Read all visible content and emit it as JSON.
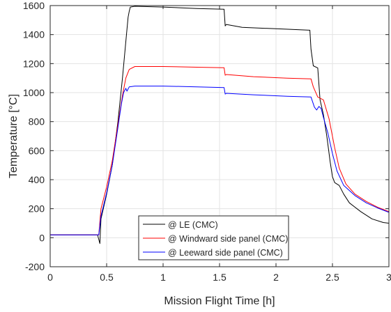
{
  "chart_data": {
    "type": "line",
    "xlabel": "Mission Flight Time [h]",
    "ylabel": "Temperature [°C]",
    "xlim": [
      0,
      3
    ],
    "ylim": [
      -200,
      1600
    ],
    "xticks": [
      0,
      0.5,
      1,
      1.5,
      2,
      2.5,
      3
    ],
    "xtick_labels": [
      "0",
      "0.5",
      "1",
      "1.5",
      "2",
      "2.5",
      "3"
    ],
    "yticks": [
      -200,
      0,
      200,
      400,
      600,
      800,
      1000,
      1200,
      1400,
      1600
    ],
    "ytick_labels": [
      "-200",
      "0",
      "200",
      "400",
      "600",
      "800",
      "1000",
      "1200",
      "1400",
      "1600"
    ],
    "grid": true,
    "legend_position": "bottom-center",
    "series": [
      {
        "name": "@ LE (CMC)",
        "color": "#000000",
        "points": [
          [
            0,
            20
          ],
          [
            0.42,
            20
          ],
          [
            0.44,
            -40
          ],
          [
            0.45,
            130
          ],
          [
            0.5,
            300
          ],
          [
            0.55,
            500
          ],
          [
            0.6,
            800
          ],
          [
            0.64,
            1100
          ],
          [
            0.67,
            1350
          ],
          [
            0.69,
            1520
          ],
          [
            0.7,
            1560
          ],
          [
            0.71,
            1590
          ],
          [
            0.75,
            1595
          ],
          [
            1.0,
            1590
          ],
          [
            1.3,
            1580
          ],
          [
            1.54,
            1575
          ],
          [
            1.55,
            1460
          ],
          [
            1.56,
            1470
          ],
          [
            1.7,
            1450
          ],
          [
            2.0,
            1440
          ],
          [
            2.3,
            1430
          ],
          [
            2.31,
            1300
          ],
          [
            2.33,
            1185
          ],
          [
            2.37,
            1170
          ],
          [
            2.39,
            950
          ],
          [
            2.42,
            850
          ],
          [
            2.45,
            700
          ],
          [
            2.48,
            520
          ],
          [
            2.5,
            420
          ],
          [
            2.52,
            380
          ],
          [
            2.56,
            360
          ],
          [
            2.6,
            300
          ],
          [
            2.65,
            240
          ],
          [
            2.75,
            180
          ],
          [
            2.85,
            130
          ],
          [
            2.95,
            105
          ],
          [
            3.0,
            100
          ]
        ]
      },
      {
        "name": "@ Windward side panel (CMC)",
        "color": "#ff0000",
        "points": [
          [
            0,
            20
          ],
          [
            0.43,
            20
          ],
          [
            0.45,
            200
          ],
          [
            0.5,
            350
          ],
          [
            0.55,
            530
          ],
          [
            0.6,
            780
          ],
          [
            0.64,
            980
          ],
          [
            0.67,
            1100
          ],
          [
            0.7,
            1160
          ],
          [
            0.75,
            1180
          ],
          [
            1.0,
            1180
          ],
          [
            1.3,
            1175
          ],
          [
            1.54,
            1172
          ],
          [
            1.55,
            1120
          ],
          [
            1.56,
            1125
          ],
          [
            1.8,
            1110
          ],
          [
            2.1,
            1100
          ],
          [
            2.31,
            1095
          ],
          [
            2.33,
            1040
          ],
          [
            2.37,
            970
          ],
          [
            2.42,
            950
          ],
          [
            2.47,
            820
          ],
          [
            2.52,
            620
          ],
          [
            2.56,
            480
          ],
          [
            2.62,
            370
          ],
          [
            2.7,
            300
          ],
          [
            2.8,
            250
          ],
          [
            2.9,
            210
          ],
          [
            3.0,
            180
          ]
        ]
      },
      {
        "name": "@ Leeward side panel (CMC)",
        "color": "#0000ff",
        "points": [
          [
            0,
            20
          ],
          [
            0.43,
            20
          ],
          [
            0.45,
            150
          ],
          [
            0.5,
            310
          ],
          [
            0.55,
            500
          ],
          [
            0.6,
            760
          ],
          [
            0.63,
            920
          ],
          [
            0.65,
            1000
          ],
          [
            0.67,
            1030
          ],
          [
            0.68,
            1010
          ],
          [
            0.7,
            1040
          ],
          [
            0.75,
            1045
          ],
          [
            1.0,
            1045
          ],
          [
            1.3,
            1040
          ],
          [
            1.54,
            1035
          ],
          [
            1.55,
            990
          ],
          [
            1.56,
            995
          ],
          [
            1.8,
            985
          ],
          [
            2.1,
            975
          ],
          [
            2.31,
            970
          ],
          [
            2.34,
            900
          ],
          [
            2.36,
            880
          ],
          [
            2.38,
            905
          ],
          [
            2.4,
            890
          ],
          [
            2.42,
            830
          ],
          [
            2.46,
            720
          ],
          [
            2.5,
            580
          ],
          [
            2.54,
            460
          ],
          [
            2.6,
            360
          ],
          [
            2.7,
            290
          ],
          [
            2.8,
            240
          ],
          [
            2.9,
            205
          ],
          [
            3.0,
            175
          ]
        ]
      }
    ]
  }
}
